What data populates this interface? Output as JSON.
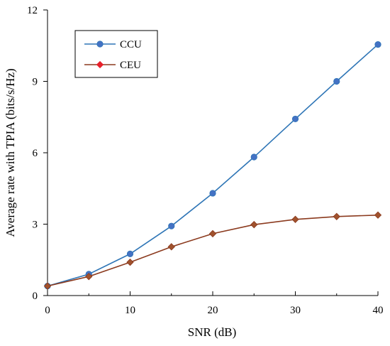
{
  "chart_data": {
    "type": "line",
    "xlabel": "SNR (dB)",
    "ylabel": "Average rate with TPIA (bits/s/Hz)",
    "xlim": [
      0,
      40
    ],
    "ylim": [
      0,
      12
    ],
    "xticks": [
      0,
      10,
      20,
      30,
      40
    ],
    "yticks": [
      0,
      3,
      6,
      9,
      12
    ],
    "grid": false,
    "legend_position": "top-left",
    "x": [
      0,
      5,
      10,
      15,
      20,
      25,
      30,
      35,
      40
    ],
    "series": [
      {
        "name": "CCU",
        "values": [
          0.4,
          0.9,
          1.75,
          2.92,
          4.3,
          5.82,
          7.42,
          9.0,
          10.55
        ],
        "line_color": "#2e75b6",
        "marker": "circle",
        "marker_color": "#4472c4"
      },
      {
        "name": "CEU",
        "values": [
          0.4,
          0.8,
          1.4,
          2.05,
          2.6,
          2.98,
          3.2,
          3.32,
          3.38
        ],
        "line_color": "#8b3a1e",
        "marker": "diamond",
        "marker_color": "#a0522d",
        "legend_marker_color": "#e8202a"
      }
    ]
  }
}
